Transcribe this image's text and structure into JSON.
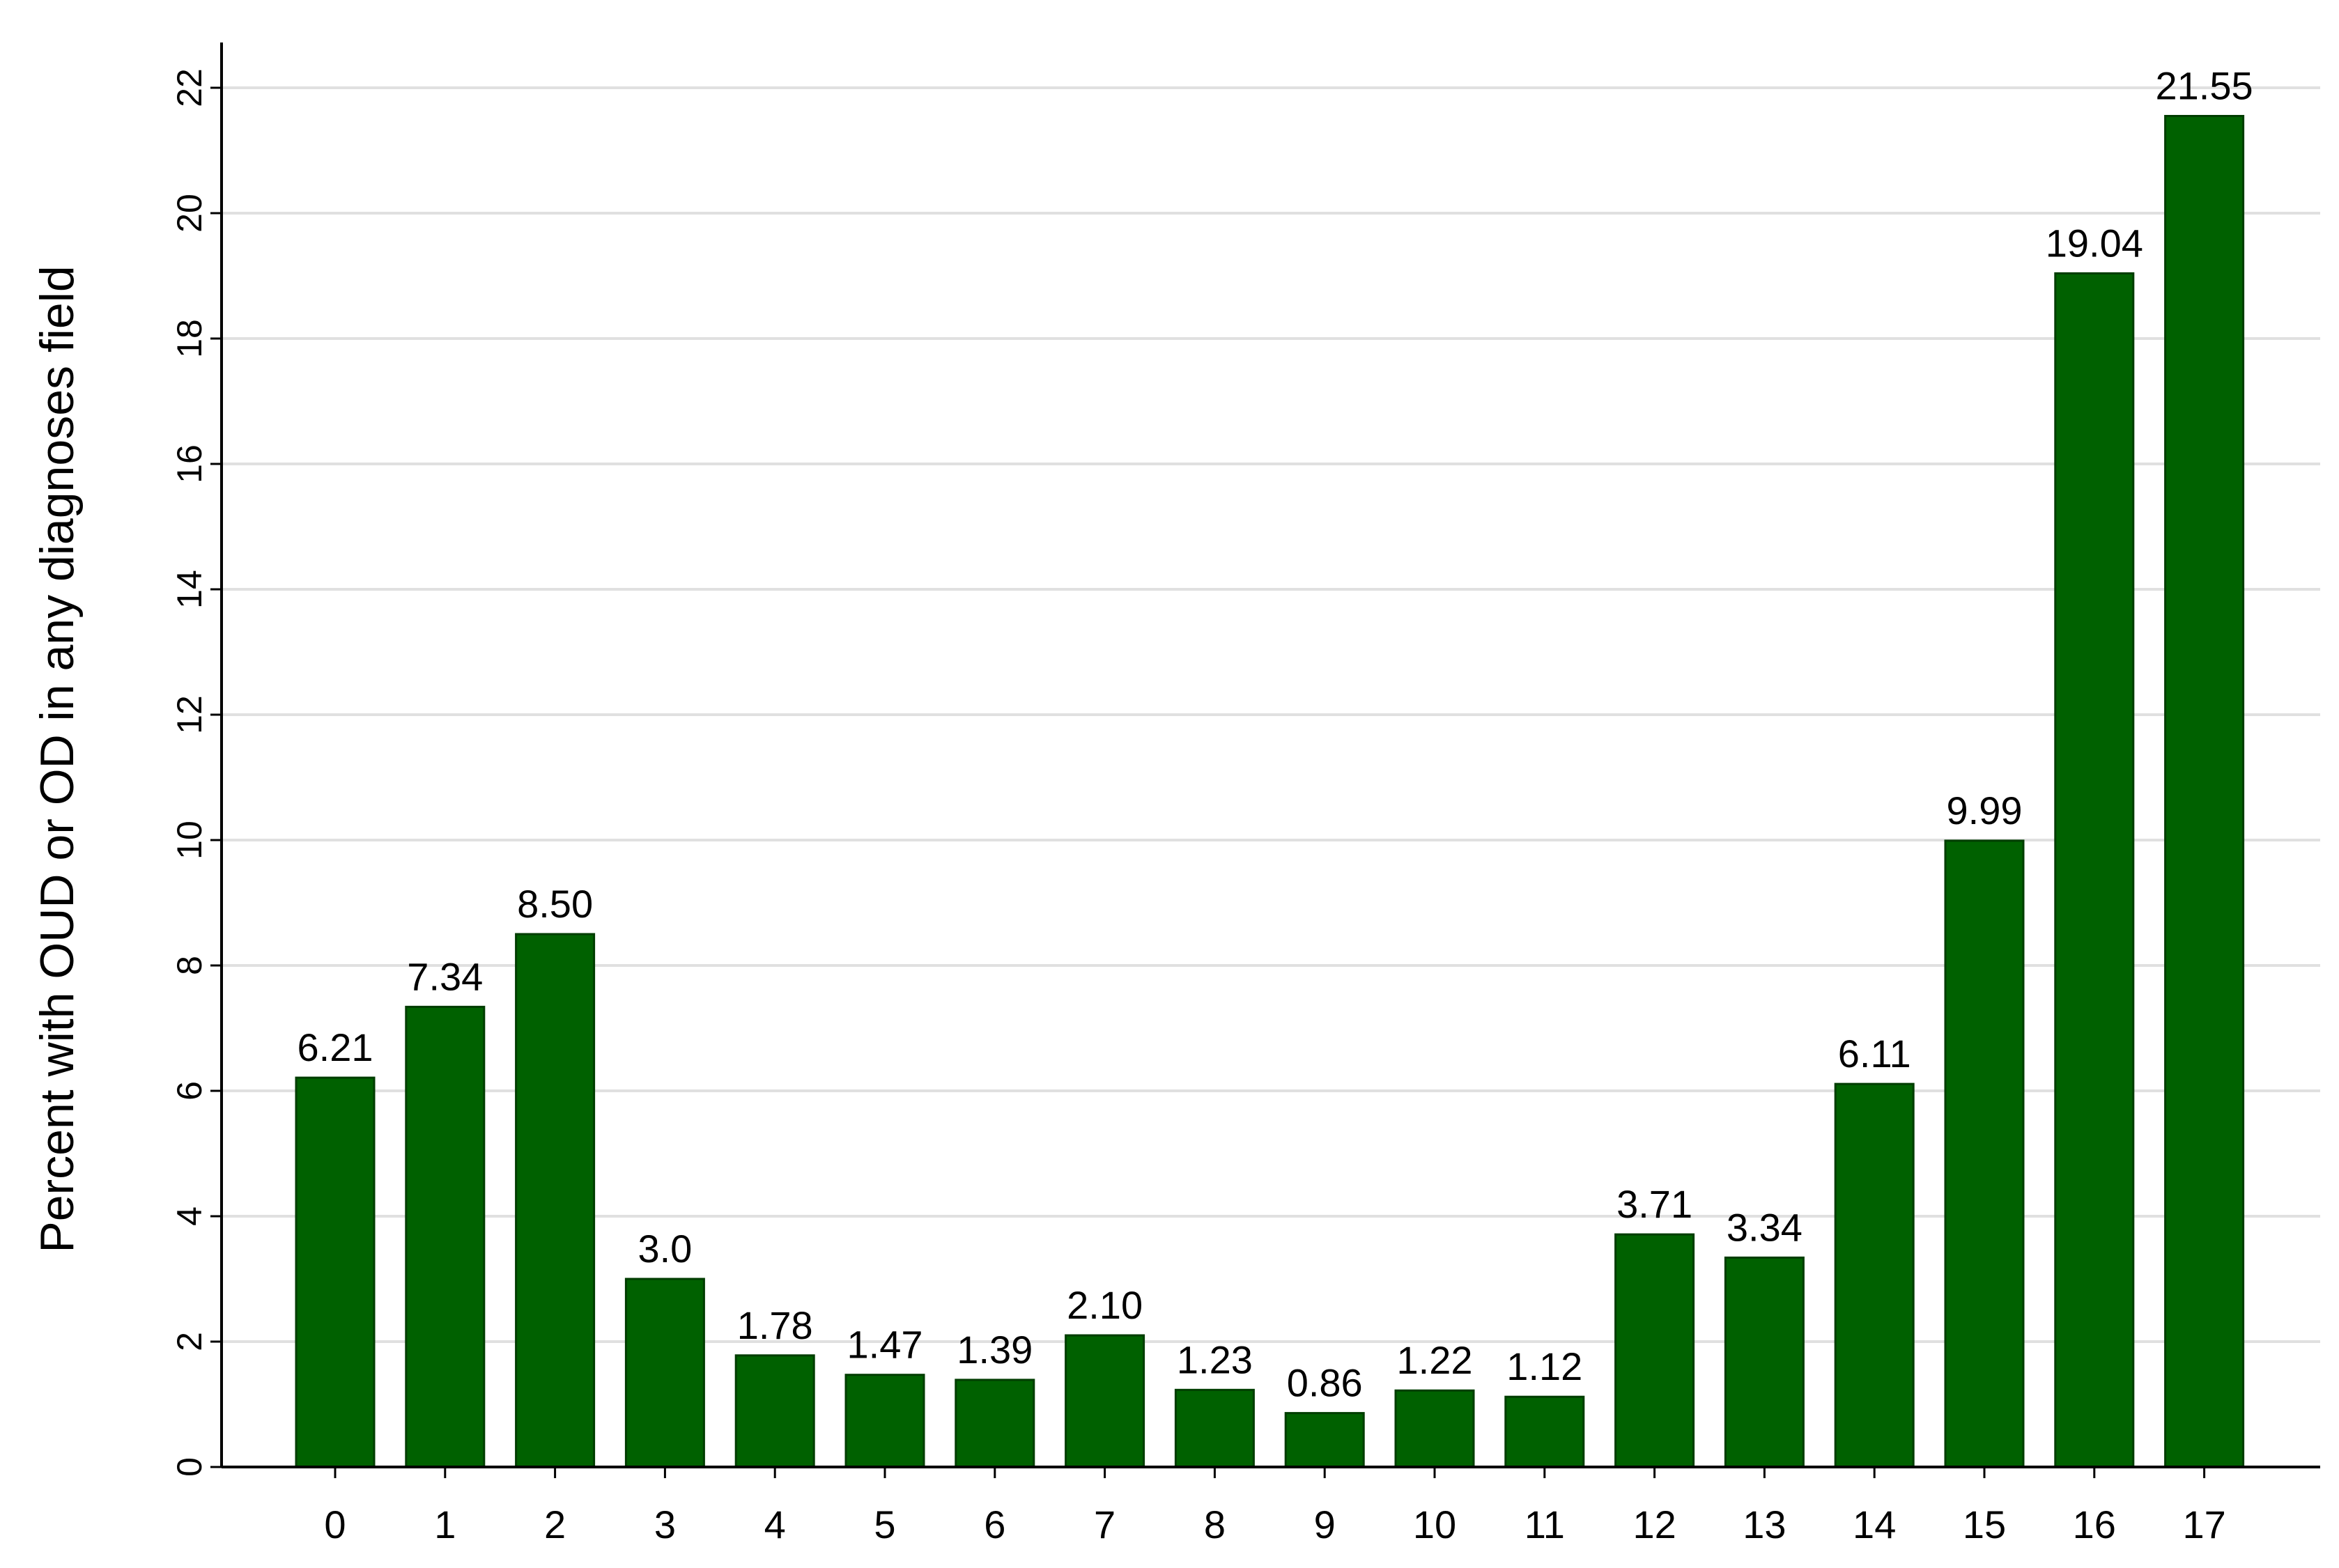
{
  "chart_data": {
    "type": "bar",
    "title": "",
    "xlabel": "",
    "ylabel": "Percent with OUD or OD in any diagnoses field",
    "categories": [
      "0",
      "1",
      "2",
      "3",
      "4",
      "5",
      "6",
      "7",
      "8",
      "9",
      "10",
      "11",
      "12",
      "13",
      "14",
      "15",
      "16",
      "17"
    ],
    "values": [
      6.21,
      7.34,
      8.5,
      3.0,
      1.78,
      1.47,
      1.39,
      2.1,
      1.23,
      0.86,
      1.22,
      1.12,
      3.71,
      3.34,
      6.11,
      9.99,
      19.04,
      21.55
    ],
    "value_labels": [
      "6.21",
      "7.34",
      "8.50",
      "3.0",
      "1.78",
      "1.47",
      "1.39",
      "2.10",
      "1.23",
      "0.86",
      "1.22",
      "1.12",
      "3.71",
      "3.34",
      "6.11",
      "9.99",
      "19.04",
      "21.55"
    ],
    "y_ticks": [
      "0",
      "2",
      "4",
      "6",
      "8",
      "10",
      "12",
      "14",
      "16",
      "18",
      "20",
      "22"
    ],
    "ylim": [
      0,
      22.5
    ],
    "grid": true,
    "legend": "none",
    "colors": {
      "bar_fill": "#006100",
      "bar_stroke": "#003d00",
      "grid": "#e0e0e0",
      "axis": "#000000",
      "text": "#000000"
    }
  }
}
